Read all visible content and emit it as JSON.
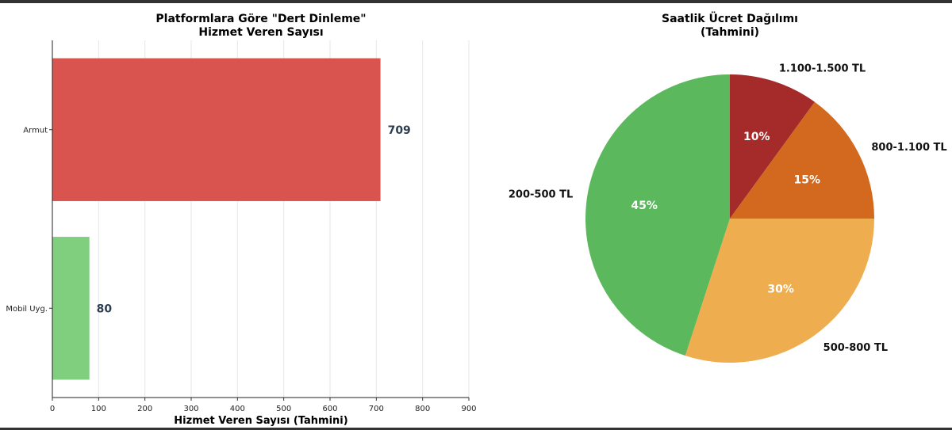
{
  "chart_data": [
    {
      "type": "bar",
      "orientation": "horizontal",
      "title_lines": [
        "Platformlara Göre \"Dert Dinleme\"",
        "Hizmet Veren Sayısı"
      ],
      "categories": [
        "Armut",
        "Mobil Uyg."
      ],
      "values": [
        709,
        80
      ],
      "value_labels": [
        "709",
        "80"
      ],
      "colors": [
        "#d9534f",
        "#7fcf7f"
      ],
      "value_label_color": "#2c3e50",
      "xlabel": "Hizmet Veren Sayısı (Tahmini)",
      "ylabel": "",
      "xlim": [
        0,
        900
      ],
      "xticks": [
        0,
        100,
        200,
        300,
        400,
        500,
        600,
        700,
        800,
        900
      ],
      "xtick_labels": [
        "0",
        "100",
        "200",
        "300",
        "400",
        "500",
        "600",
        "700",
        "800",
        "900"
      ],
      "grid": "vertical"
    },
    {
      "type": "pie",
      "title_lines": [
        "Saatlik Ücret Dağılımı",
        "(Tahmini)"
      ],
      "slices": [
        {
          "label": "1.100-1.500 TL",
          "value": 10,
          "pct_label": "10%",
          "color": "#a52a2a"
        },
        {
          "label": "800-1.100 TL",
          "value": 15,
          "pct_label": "15%",
          "color": "#d2691e"
        },
        {
          "label": "500-800 TL",
          "value": 30,
          "pct_label": "30%",
          "color": "#eead4e"
        },
        {
          "label": "200-500 TL",
          "value": 45,
          "pct_label": "45%",
          "color": "#5cb85c"
        }
      ],
      "start": "top",
      "direction": "clockwise"
    }
  ]
}
